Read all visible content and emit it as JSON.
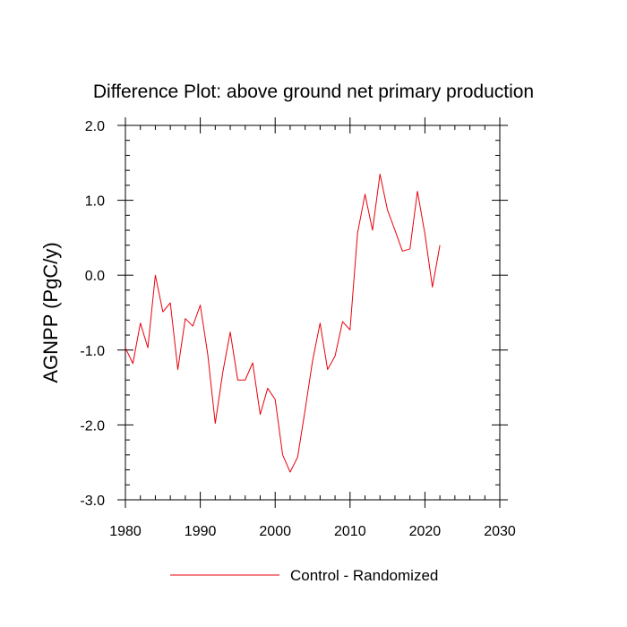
{
  "chart_data": {
    "type": "line",
    "title": "Difference Plot: above ground net primary production",
    "xlabel": "",
    "ylabel": "AGNPP  (PgC/y)",
    "xlim": [
      1980,
      2030
    ],
    "ylim": [
      -3.0,
      2.0
    ],
    "x_ticks": [
      1980,
      1990,
      2000,
      2010,
      2020,
      2030
    ],
    "x_tick_labels": [
      "1980",
      "1990",
      "2000",
      "2010",
      "2020",
      "2030"
    ],
    "y_ticks": [
      -3.0,
      -2.0,
      -1.0,
      0.0,
      1.0,
      2.0
    ],
    "y_tick_labels": [
      "-3.0",
      "-2.0",
      "-1.0",
      "0.0",
      "1.0",
      "2.0"
    ],
    "grid": false,
    "legend_position": "bottom",
    "series": [
      {
        "name": "Control - Randomized",
        "color": "#e8000b",
        "x": [
          1980,
          1981,
          1982,
          1983,
          1984,
          1985,
          1986,
          1987,
          1988,
          1989,
          1990,
          1991,
          1992,
          1993,
          1994,
          1995,
          1996,
          1997,
          1998,
          1999,
          2000,
          2001,
          2002,
          2003,
          2004,
          2005,
          2006,
          2007,
          2008,
          2009,
          2010,
          2011,
          2012,
          2013,
          2014,
          2015,
          2016,
          2017,
          2018,
          2019,
          2020,
          2021,
          2022
        ],
        "y": [
          -0.97,
          -1.18,
          -0.64,
          -0.97,
          0.0,
          -0.49,
          -0.37,
          -1.26,
          -0.58,
          -0.68,
          -0.4,
          -1.06,
          -1.98,
          -1.3,
          -0.76,
          -1.4,
          -1.4,
          -1.17,
          -1.86,
          -1.51,
          -1.66,
          -2.4,
          -2.63,
          -2.43,
          -1.8,
          -1.14,
          -0.64,
          -1.26,
          -1.08,
          -0.62,
          -0.73,
          0.56,
          1.08,
          0.6,
          1.35,
          0.87,
          0.6,
          0.32,
          0.35,
          1.12,
          0.55,
          -0.16,
          0.4
        ]
      }
    ]
  }
}
